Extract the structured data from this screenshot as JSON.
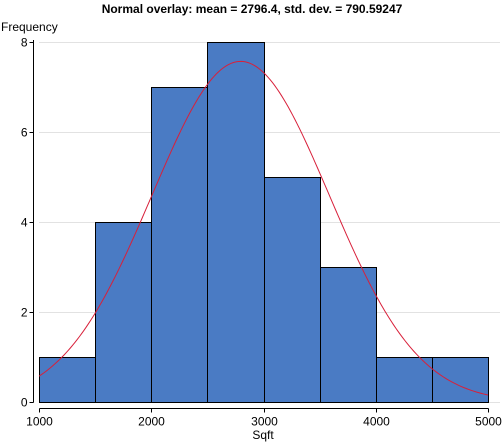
{
  "chart_data": {
    "type": "bar",
    "title": "Normal overlay: mean = 2796.4, std. dev. = 790.59247",
    "xlabel": "Sqft",
    "ylabel": "Frequency",
    "xlim": [
      1000,
      5000
    ],
    "ylim": [
      0,
      8
    ],
    "x_ticks": [
      "1000",
      "2000",
      "3000",
      "4000",
      "5000"
    ],
    "y_ticks": [
      "0",
      "2",
      "4",
      "6",
      "8"
    ],
    "grid": true,
    "bins": [
      {
        "from": 1000,
        "to": 1500,
        "value": 1
      },
      {
        "from": 1500,
        "to": 2000,
        "value": 4
      },
      {
        "from": 2000,
        "to": 2500,
        "value": 7
      },
      {
        "from": 2500,
        "to": 3000,
        "value": 8
      },
      {
        "from": 3000,
        "to": 3500,
        "value": 5
      },
      {
        "from": 3500,
        "to": 4000,
        "value": 3
      },
      {
        "from": 4000,
        "to": 4500,
        "value": 1
      },
      {
        "from": 4500,
        "to": 5000,
        "value": 1
      }
    ],
    "overlay": {
      "type": "normal",
      "mean": 2796.4,
      "std": 790.59247,
      "n": 30,
      "bin_width": 500
    },
    "colors": {
      "bar": "#4a7bc4",
      "curve": "#d8203a"
    }
  }
}
